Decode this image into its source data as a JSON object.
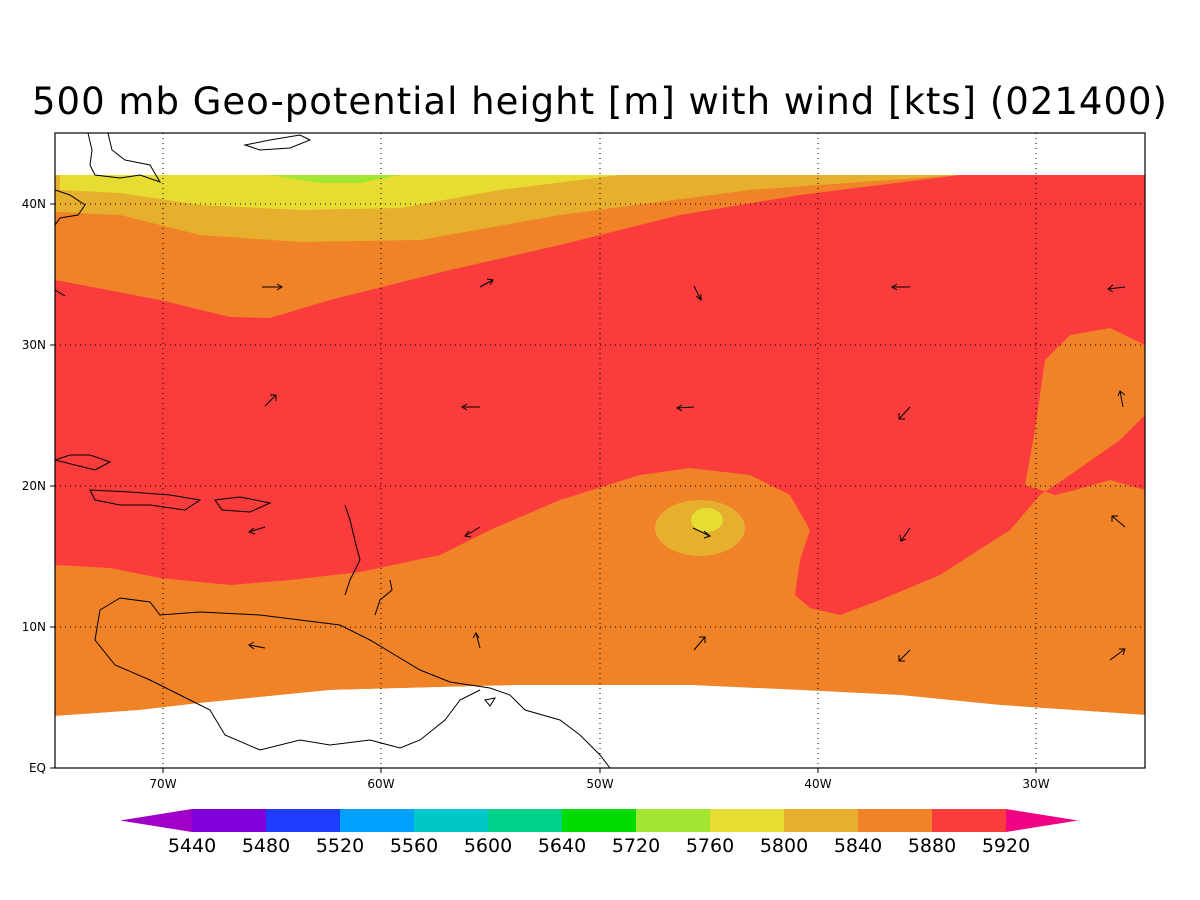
{
  "title": "500 mb Geo-potential height [m] with wind [kts] (021400)",
  "map": {
    "lat_labels": [
      "EQ",
      "10N",
      "20N",
      "30N",
      "40N"
    ],
    "lon_labels": [
      "70W",
      "60W",
      "50W",
      "40W",
      "30W"
    ],
    "lon_range": [
      -75,
      -25
    ],
    "lat_range": [
      0,
      45
    ]
  },
  "colorbar": {
    "levels": [
      "5440",
      "5480",
      "5520",
      "5560",
      "5600",
      "5640",
      "5720",
      "5760",
      "5800",
      "5840",
      "5880",
      "5920"
    ],
    "colors": [
      "#a000c8",
      "#8200dc",
      "#1e3cff",
      "#00a0ff",
      "#00c8c8",
      "#00d28c",
      "#00dc00",
      "#a0e632",
      "#e6dc32",
      "#e6af2d",
      "#f08228",
      "#fa3c3c",
      "#f00082"
    ]
  }
}
